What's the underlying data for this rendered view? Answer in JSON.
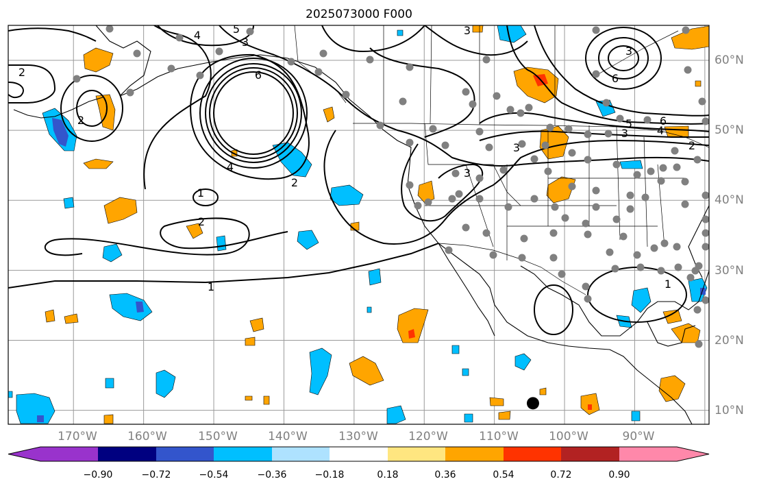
{
  "title": "2025073000 F000",
  "map": {
    "lon_labels": [
      "170°W",
      "160°W",
      "150°W",
      "140°W",
      "130°W",
      "120°W",
      "110°W",
      "100°W",
      "90°W"
    ],
    "lat_labels": [
      "60°N",
      "50°N",
      "40°N",
      "30°N",
      "20°N",
      "10°N"
    ],
    "contour_labels": [
      "1",
      "2",
      "3",
      "4",
      "5",
      "6"
    ],
    "point_marker": {
      "name": "black-dot",
      "lon": -104.5,
      "lat": 11.0
    }
  },
  "colorbar": {
    "ticks": [
      "−0.90",
      "−0.72",
      "−0.54",
      "−0.36",
      "−0.18",
      "0.18",
      "0.36",
      "0.54",
      "0.72",
      "0.90"
    ],
    "colors": [
      "#9933cc",
      "#000080",
      "#3355cc",
      "#00bfff",
      "#aee2ff",
      "#ffffff",
      "#ffe680",
      "#ffa500",
      "#ff3300",
      "#b22222",
      "#ff88aa"
    ]
  }
}
